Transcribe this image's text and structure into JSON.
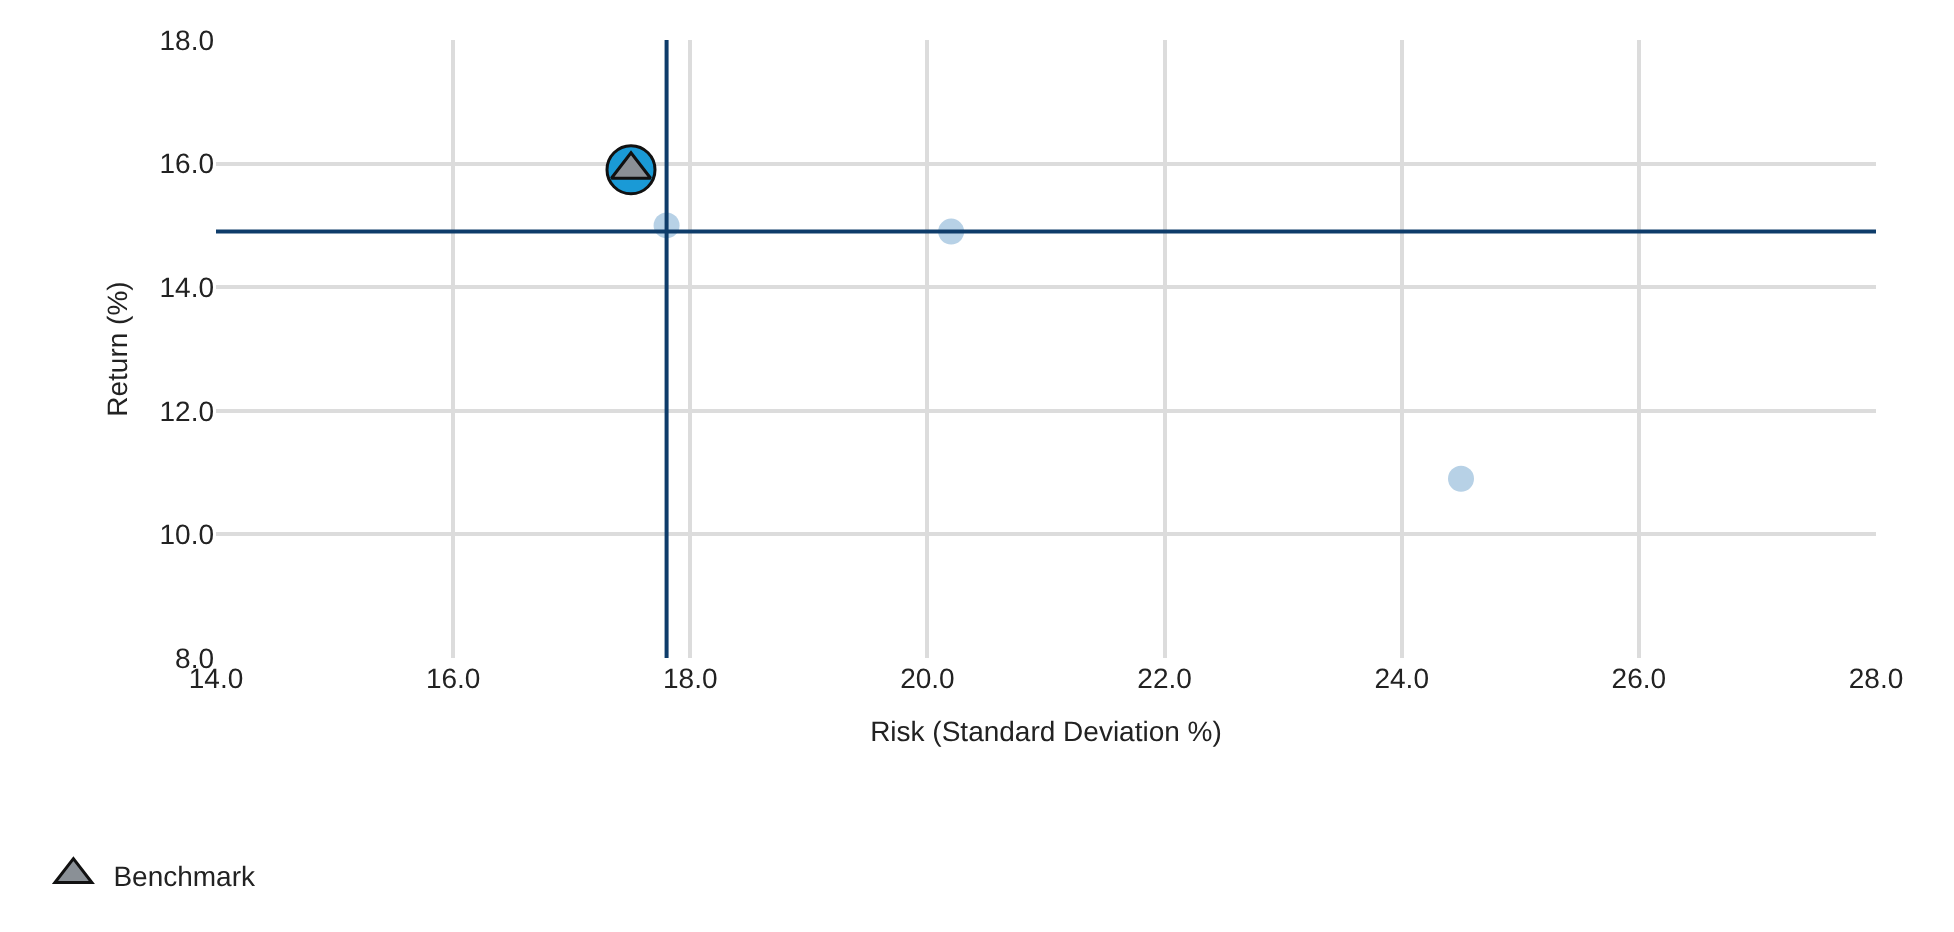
{
  "chart_data": {
    "type": "scatter",
    "xlabel": "Risk (Standard Deviation %)",
    "ylabel": "Return (%)",
    "xlim": [
      14,
      28
    ],
    "xticks": [
      {
        "value": 14,
        "label": "14.0"
      },
      {
        "value": 16,
        "label": "16.0"
      },
      {
        "value": 18,
        "label": "18.0"
      },
      {
        "value": 20,
        "label": "20.0"
      },
      {
        "value": 22,
        "label": "22.0"
      },
      {
        "value": 24,
        "label": "24.0"
      },
      {
        "value": 26,
        "label": "26.0"
      },
      {
        "value": 28,
        "label": "28.0"
      }
    ],
    "ylim": [
      8,
      18
    ],
    "yticks": [
      {
        "value": 8,
        "label": "8.0"
      },
      {
        "value": 10,
        "label": "10.0"
      },
      {
        "value": 12,
        "label": "12.0"
      },
      {
        "value": 14,
        "label": "14.0"
      },
      {
        "value": 16,
        "label": "16.0"
      },
      {
        "value": 18,
        "label": "18.0"
      }
    ],
    "grid": true,
    "legend": "bottom left",
    "ref_lines": [
      {
        "axis": "x",
        "value": 17.8,
        "color": "#0e3c6a"
      },
      {
        "axis": "y",
        "value": 14.9,
        "color": "#0e3c6a"
      }
    ],
    "series": [
      {
        "color": "#b7d1e6",
        "marker": "circle",
        "x": [
          17.8,
          20.2,
          24.5
        ],
        "values": [
          15.0,
          14.9,
          10.9
        ]
      },
      {
        "color": "#1a9ad6",
        "marker": "circle",
        "x": [
          17.5
        ],
        "values": [
          15.9
        ]
      },
      {
        "name": "Benchmark",
        "color": "#8a9096",
        "marker": "triangle",
        "x": [
          17.5
        ],
        "values": [
          15.9
        ]
      }
    ]
  }
}
